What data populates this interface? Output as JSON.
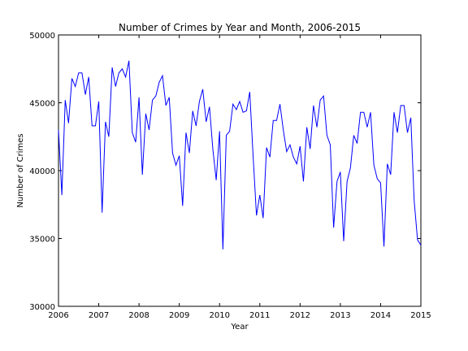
{
  "chart_data": {
    "type": "line",
    "title": "Number of Crimes by Year and Month, 2006-2015",
    "xlabel": "Year",
    "ylabel": "Number of Crimes",
    "xlim": [
      2006,
      2015
    ],
    "ylim": [
      30000,
      50000
    ],
    "x_ticks": [
      "2006",
      "2007",
      "2008",
      "2009",
      "2010",
      "2011",
      "2012",
      "2013",
      "2014",
      "2015"
    ],
    "y_ticks": [
      "30000",
      "35000",
      "40000",
      "45000",
      "50000"
    ],
    "grid": false,
    "legend": "none",
    "series": [
      {
        "color": "#0000ff",
        "x": [
          2006.0,
          2006.083,
          2006.167,
          2006.25,
          2006.333,
          2006.417,
          2006.5,
          2006.583,
          2006.667,
          2006.75,
          2006.833,
          2006.917,
          2007.0,
          2007.083,
          2007.167,
          2007.25,
          2007.333,
          2007.417,
          2007.5,
          2007.583,
          2007.667,
          2007.75,
          2007.833,
          2007.917,
          2008.0,
          2008.083,
          2008.167,
          2008.25,
          2008.333,
          2008.417,
          2008.5,
          2008.583,
          2008.667,
          2008.75,
          2008.833,
          2008.917,
          2009.0,
          2009.083,
          2009.167,
          2009.25,
          2009.333,
          2009.417,
          2009.5,
          2009.583,
          2009.667,
          2009.75,
          2009.833,
          2009.917,
          2010.0,
          2010.083,
          2010.167,
          2010.25,
          2010.333,
          2010.417,
          2010.5,
          2010.583,
          2010.667,
          2010.75,
          2010.833,
          2010.917,
          2011.0,
          2011.083,
          2011.167,
          2011.25,
          2011.333,
          2011.417,
          2011.5,
          2011.583,
          2011.667,
          2011.75,
          2011.833,
          2011.917,
          2012.0,
          2012.083,
          2012.167,
          2012.25,
          2012.333,
          2012.417,
          2012.5,
          2012.583,
          2012.667,
          2012.75,
          2012.833,
          2012.917,
          2013.0,
          2013.083,
          2013.167,
          2013.25,
          2013.333,
          2013.417,
          2013.5,
          2013.583,
          2013.667,
          2013.75,
          2013.833,
          2013.917,
          2014.0,
          2014.083,
          2014.167,
          2014.25,
          2014.333,
          2014.417,
          2014.5,
          2014.583,
          2014.667,
          2014.75,
          2014.833,
          2014.917,
          2015.0
        ],
        "values": [
          43000,
          38200,
          45200,
          43500,
          46800,
          46200,
          47200,
          47200,
          45600,
          46900,
          43300,
          43300,
          45100,
          36900,
          43600,
          42500,
          47600,
          46200,
          47200,
          47500,
          46900,
          48100,
          42800,
          42100,
          45400,
          39700,
          44200,
          43000,
          45200,
          45500,
          46500,
          47000,
          44800,
          45400,
          41300,
          40400,
          41100,
          37400,
          42800,
          41300,
          44400,
          43300,
          45100,
          46000,
          43600,
          44700,
          41600,
          39300,
          42900,
          34200,
          42600,
          42900,
          44900,
          44500,
          45100,
          44300,
          44400,
          45800,
          41100,
          36700,
          38200,
          36500,
          41700,
          41000,
          43700,
          43700,
          44900,
          43000,
          41400,
          41900,
          41000,
          40500,
          41800,
          39200,
          43200,
          41600,
          44800,
          43200,
          45200,
          45500,
          42600,
          41900,
          35800,
          39200,
          39900,
          34800,
          39200,
          40200,
          42600,
          42000,
          44300,
          44300,
          43200,
          44300,
          40400,
          39400,
          39100,
          34400,
          40500,
          39700,
          44300,
          42800,
          44800,
          44800,
          42800,
          43900,
          37800,
          34900,
          34500
        ]
      }
    ]
  }
}
